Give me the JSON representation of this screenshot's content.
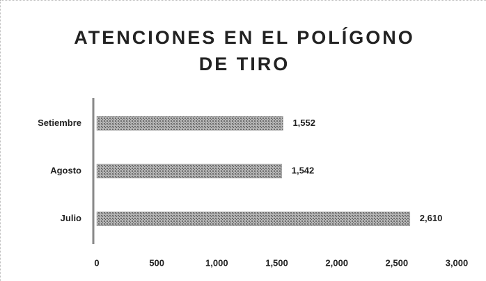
{
  "chart_data": {
    "type": "bar",
    "orientation": "horizontal",
    "title": "ATENCIONES EN EL POLÍGONO DE TIRO",
    "categories": [
      "Julio",
      "Agosto",
      "Setiembre"
    ],
    "values": [
      2610,
      1542,
      1552
    ],
    "value_labels": [
      "2,610",
      "1,542",
      "1,552"
    ],
    "color": "#9a9a9a",
    "xlim": [
      0,
      3000
    ],
    "xticks": [
      0,
      500,
      {
        "value": 1000,
        "label": "1,000"
      },
      {
        "value": 1500,
        "label": "1,500"
      },
      {
        "value": 2000,
        "label": "2,000"
      },
      {
        "value": 2500,
        "label": "2,500"
      },
      {
        "value": 3000,
        "label": "3,000"
      }
    ],
    "grid": false
  }
}
